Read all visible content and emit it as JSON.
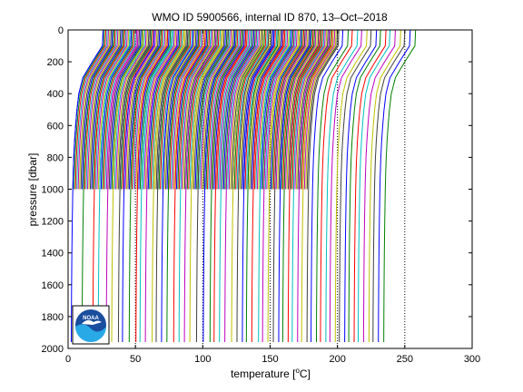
{
  "chart_data": {
    "type": "line",
    "title": "WMO ID 5900566, internal ID 870, 13–Oct–2018",
    "xlabel_prefix": "temperature [",
    "xlabel_unit_sup": "o",
    "xlabel_suffix": "C]",
    "ylabel": "pressure [dbar]",
    "xlim": [
      0,
      300
    ],
    "ylim": [
      0,
      2000
    ],
    "y_reversed": true,
    "x_ticks": [
      "0",
      "50",
      "100",
      "150",
      "200",
      "250",
      "300"
    ],
    "y_ticks": [
      "0",
      "200",
      "400",
      "600",
      "800",
      "1000",
      "1200",
      "1400",
      "1600",
      "1800",
      "2000"
    ],
    "x_tick_values": [
      0,
      50,
      100,
      150,
      200,
      250,
      300
    ],
    "y_tick_values": [
      0,
      200,
      400,
      600,
      800,
      1000,
      1200,
      1400,
      1600,
      1800,
      2000
    ],
    "grid": false,
    "legend": "none",
    "profile_offset_step": 1,
    "shallow_profile_count": 175,
    "shallow_first_offset": 0,
    "shallow_max_pressure": 1000,
    "deep_profiles": {
      "offsets": [
        0,
        8,
        16,
        20,
        26,
        30,
        35,
        38,
        43,
        48,
        51,
        55,
        60,
        63,
        67,
        71,
        76,
        80,
        84,
        88,
        93,
        98,
        103,
        106,
        110,
        114,
        119,
        123,
        127,
        130,
        134,
        139,
        142,
        146,
        150,
        154,
        157,
        161,
        164,
        168,
        171,
        175,
        178,
        182,
        185,
        189,
        192,
        196,
        199,
        203,
        206,
        210,
        213,
        217,
        221,
        224,
        228,
        232
      ],
      "max_pressure": 1960
    },
    "profile_shape": {
      "pressure": [
        0,
        100,
        200,
        300,
        400,
        500,
        600,
        700,
        800,
        900,
        1000,
        1200,
        1400,
        1600,
        1800,
        2000
      ],
      "temperature": [
        26,
        25.5,
        18,
        11,
        8,
        6.6,
        5.6,
        4.8,
        4.2,
        3.8,
        3.5,
        3.1,
        2.8,
        2.6,
        2.45,
        2.35
      ]
    },
    "series_colors": [
      "#0000ff",
      "#008000",
      "#ff0000",
      "#00bfbf",
      "#bf00bf",
      "#bfbf00",
      "#404040"
    ],
    "dotted_guides_x": [
      50,
      100,
      150,
      200,
      250
    ],
    "logo": {
      "text": "NOAA",
      "primary_color": "#1a4d9e",
      "light_color": "#29a9e6"
    }
  }
}
